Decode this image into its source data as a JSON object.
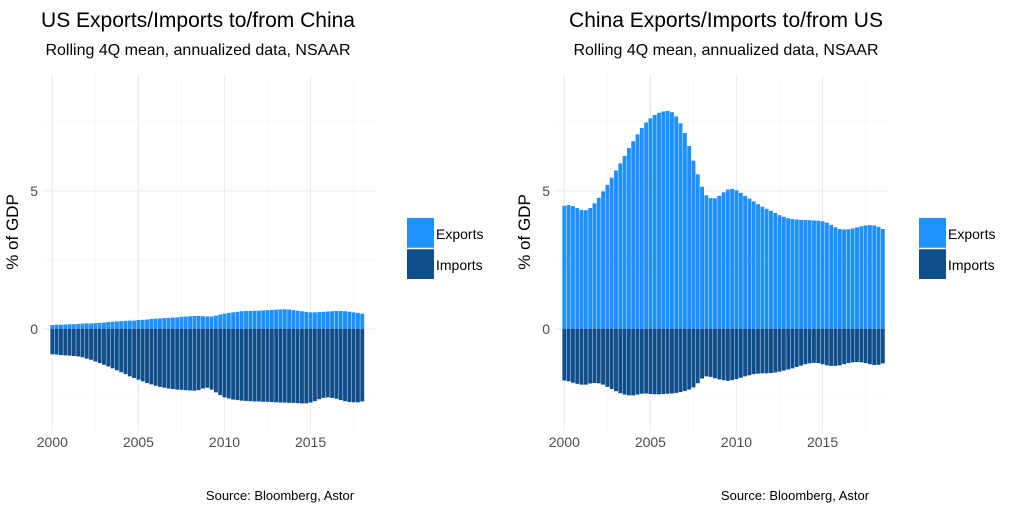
{
  "colors": {
    "exports": "#1e90ff",
    "imports": "#104e8b"
  },
  "chart_data": [
    {
      "type": "bar",
      "title": "US Exports/Imports to/from China",
      "subtitle": "Rolling 4Q mean, annualized data, NSAAR",
      "ylabel": "% of GDP",
      "source": "Source: Bloomberg, Astor",
      "legend": [
        "Exports",
        "Imports"
      ],
      "legend_position": "right",
      "xlim": [
        1999.4,
        2018.8
      ],
      "ylim": [
        -3.7,
        9.2
      ],
      "xticks": [
        2000,
        2005,
        2010,
        2015
      ],
      "yticks": [
        0,
        5
      ],
      "grid": true,
      "x_start": 2000.0,
      "x_step": 0.25,
      "series": [
        {
          "name": "Exports",
          "values": [
            0.14,
            0.15,
            0.15,
            0.16,
            0.17,
            0.17,
            0.18,
            0.19,
            0.2,
            0.2,
            0.21,
            0.22,
            0.23,
            0.25,
            0.26,
            0.27,
            0.28,
            0.29,
            0.3,
            0.3,
            0.32,
            0.33,
            0.34,
            0.36,
            0.37,
            0.38,
            0.39,
            0.4,
            0.41,
            0.42,
            0.44,
            0.45,
            0.46,
            0.47,
            0.47,
            0.46,
            0.45,
            0.45,
            0.48,
            0.52,
            0.55,
            0.58,
            0.6,
            0.62,
            0.64,
            0.65,
            0.65,
            0.66,
            0.66,
            0.67,
            0.68,
            0.69,
            0.7,
            0.71,
            0.71,
            0.7,
            0.68,
            0.66,
            0.64,
            0.62,
            0.6,
            0.6,
            0.61,
            0.62,
            0.63,
            0.64,
            0.65,
            0.65,
            0.64,
            0.62,
            0.6,
            0.58,
            0.55
          ]
        },
        {
          "name": "Imports",
          "values": [
            -0.92,
            -0.93,
            -0.95,
            -0.96,
            -0.97,
            -0.98,
            -1.0,
            -1.03,
            -1.08,
            -1.12,
            -1.18,
            -1.24,
            -1.3,
            -1.36,
            -1.43,
            -1.5,
            -1.57,
            -1.64,
            -1.72,
            -1.78,
            -1.84,
            -1.9,
            -1.96,
            -2.01,
            -2.06,
            -2.1,
            -2.13,
            -2.16,
            -2.18,
            -2.2,
            -2.21,
            -2.22,
            -2.23,
            -2.24,
            -2.22,
            -2.16,
            -2.13,
            -2.2,
            -2.3,
            -2.4,
            -2.48,
            -2.52,
            -2.56,
            -2.58,
            -2.6,
            -2.61,
            -2.62,
            -2.63,
            -2.63,
            -2.64,
            -2.64,
            -2.65,
            -2.66,
            -2.67,
            -2.67,
            -2.68,
            -2.68,
            -2.69,
            -2.7,
            -2.7,
            -2.67,
            -2.62,
            -2.55,
            -2.5,
            -2.48,
            -2.5,
            -2.53,
            -2.58,
            -2.62,
            -2.65,
            -2.66,
            -2.66,
            -2.63
          ]
        }
      ]
    },
    {
      "type": "bar",
      "title": "China Exports/Imports to/from US",
      "subtitle": "Rolling 4Q mean, annualized data, NSAAR",
      "ylabel": "% of GDP",
      "source": "Source: Bloomberg, Astor",
      "legend": [
        "Exports",
        "Imports"
      ],
      "legend_position": "right",
      "xlim": [
        1999.4,
        2018.8
      ],
      "ylim": [
        -3.7,
        9.2
      ],
      "xticks": [
        2000,
        2005,
        2010,
        2015
      ],
      "yticks": [
        0,
        5
      ],
      "grid": true,
      "x_start": 2000.0,
      "x_step": 0.25,
      "series": [
        {
          "name": "Exports",
          "values": [
            4.46,
            4.49,
            4.45,
            4.38,
            4.31,
            4.3,
            4.38,
            4.55,
            4.75,
            4.98,
            5.22,
            5.48,
            5.74,
            6.0,
            6.27,
            6.55,
            6.8,
            7.05,
            7.28,
            7.48,
            7.63,
            7.75,
            7.83,
            7.88,
            7.9,
            7.85,
            7.7,
            7.45,
            7.1,
            6.63,
            6.1,
            5.6,
            5.15,
            4.84,
            4.74,
            4.73,
            4.82,
            4.95,
            5.05,
            5.07,
            5.02,
            4.93,
            4.82,
            4.72,
            4.62,
            4.52,
            4.43,
            4.35,
            4.28,
            4.2,
            4.12,
            4.06,
            4.01,
            3.98,
            3.96,
            3.95,
            3.95,
            3.94,
            3.93,
            3.92,
            3.9,
            3.85,
            3.77,
            3.68,
            3.62,
            3.6,
            3.61,
            3.64,
            3.68,
            3.72,
            3.75,
            3.76,
            3.75,
            3.7,
            3.62
          ]
        },
        {
          "name": "Imports",
          "values": [
            -1.87,
            -1.9,
            -1.95,
            -1.99,
            -2.02,
            -2.02,
            -1.98,
            -1.96,
            -1.97,
            -2.02,
            -2.1,
            -2.18,
            -2.26,
            -2.33,
            -2.38,
            -2.41,
            -2.41,
            -2.38,
            -2.35,
            -2.34,
            -2.36,
            -2.37,
            -2.37,
            -2.36,
            -2.35,
            -2.34,
            -2.32,
            -2.29,
            -2.25,
            -2.2,
            -2.12,
            -1.97,
            -1.8,
            -1.72,
            -1.74,
            -1.79,
            -1.83,
            -1.86,
            -1.88,
            -1.86,
            -1.82,
            -1.77,
            -1.72,
            -1.68,
            -1.64,
            -1.62,
            -1.61,
            -1.61,
            -1.6,
            -1.58,
            -1.55,
            -1.51,
            -1.47,
            -1.43,
            -1.38,
            -1.33,
            -1.28,
            -1.25,
            -1.23,
            -1.24,
            -1.28,
            -1.32,
            -1.34,
            -1.34,
            -1.32,
            -1.28,
            -1.24,
            -1.21,
            -1.2,
            -1.21,
            -1.24,
            -1.28,
            -1.31,
            -1.3,
            -1.25
          ]
        }
      ]
    }
  ]
}
